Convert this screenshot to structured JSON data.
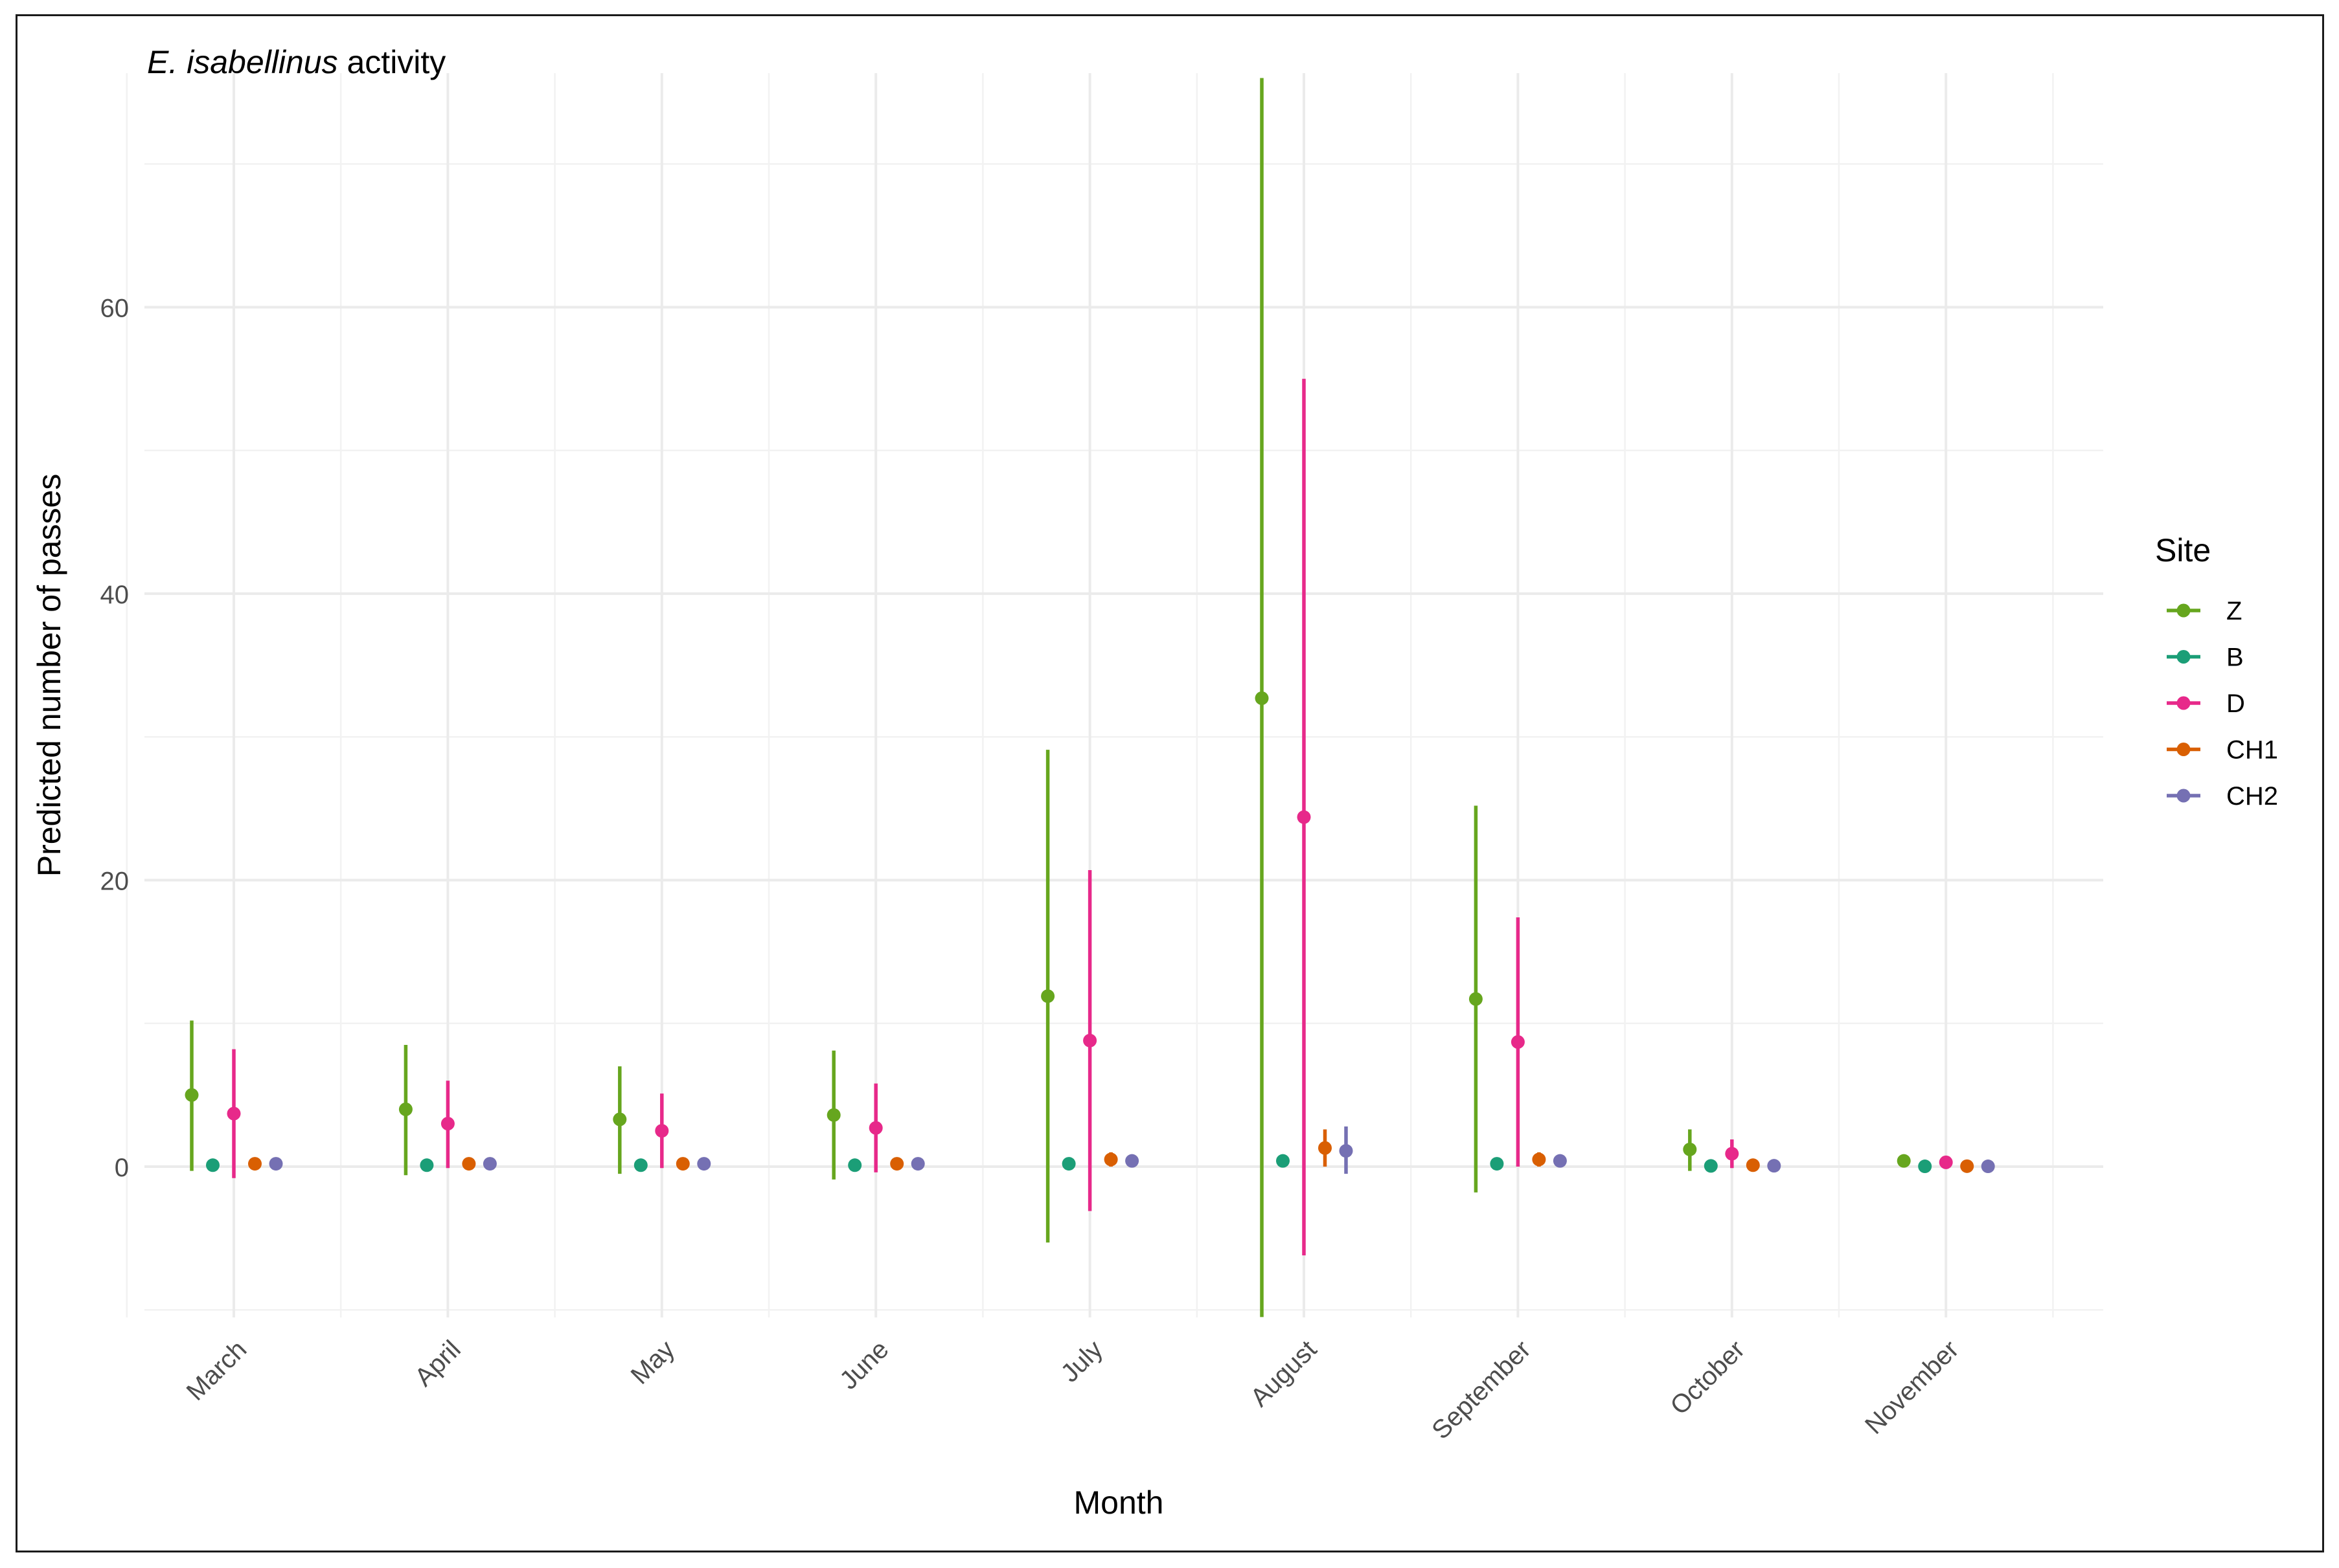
{
  "chart_data": {
    "type": "scatter",
    "title_species": "E. isabellinus",
    "title_rest": " activity",
    "xlabel": "Month",
    "ylabel": "Predicted number of passes",
    "categories": [
      "March",
      "April",
      "May",
      "June",
      "July",
      "August",
      "September",
      "October",
      "November"
    ],
    "ylim": [
      -10.5,
      76
    ],
    "yticks": [
      0,
      20,
      40,
      60
    ],
    "grid": true,
    "legend": {
      "title": "Site",
      "position": "right"
    },
    "series": [
      {
        "name": "Z",
        "color": "#66a61e",
        "values": [
          5.0,
          4.0,
          3.3,
          3.6,
          11.9,
          32.7,
          11.7,
          1.2,
          0.4
        ],
        "lower": [
          -0.3,
          -0.6,
          -0.5,
          -0.9,
          -5.3,
          -10.5,
          -1.8,
          -0.3,
          0.1
        ],
        "upper": [
          10.2,
          8.5,
          7.0,
          8.1,
          29.1,
          76.0,
          25.2,
          2.6,
          0.7
        ]
      },
      {
        "name": "B",
        "color": "#1b9e77",
        "values": [
          0.1,
          0.1,
          0.1,
          0.1,
          0.2,
          0.4,
          0.2,
          0.05,
          0.02
        ],
        "lower": [
          0.05,
          0.05,
          0.05,
          0.05,
          0.1,
          0.2,
          0.1,
          0.02,
          0.01
        ],
        "upper": [
          0.2,
          0.2,
          0.2,
          0.2,
          0.3,
          0.6,
          0.3,
          0.1,
          0.05
        ]
      },
      {
        "name": "D",
        "color": "#e7298a",
        "values": [
          3.7,
          3.0,
          2.5,
          2.7,
          8.8,
          24.4,
          8.7,
          0.9,
          0.3
        ],
        "lower": [
          -0.8,
          -0.1,
          -0.1,
          -0.4,
          -3.1,
          -6.2,
          0.0,
          -0.1,
          0.1
        ],
        "upper": [
          8.2,
          6.0,
          5.1,
          5.8,
          20.7,
          55.0,
          17.4,
          1.9,
          0.5
        ]
      },
      {
        "name": "CH1",
        "color": "#d95f02",
        "values": [
          0.2,
          0.2,
          0.2,
          0.2,
          0.5,
          1.3,
          0.5,
          0.1,
          0.03
        ],
        "lower": [
          0.1,
          0.1,
          0.1,
          0.1,
          0.0,
          0.0,
          0.0,
          0.03,
          0.01
        ],
        "upper": [
          0.4,
          0.4,
          0.4,
          0.4,
          1.0,
          2.6,
          1.0,
          0.2,
          0.06
        ]
      },
      {
        "name": "CH2",
        "color": "#7570b3",
        "values": [
          0.2,
          0.2,
          0.2,
          0.2,
          0.4,
          1.1,
          0.4,
          0.06,
          0.02
        ],
        "lower": [
          0.1,
          0.1,
          0.1,
          0.1,
          0.1,
          -0.5,
          0.1,
          0.02,
          0.01
        ],
        "upper": [
          0.3,
          0.3,
          0.3,
          0.3,
          0.7,
          2.8,
          0.7,
          0.1,
          0.04
        ]
      }
    ]
  }
}
